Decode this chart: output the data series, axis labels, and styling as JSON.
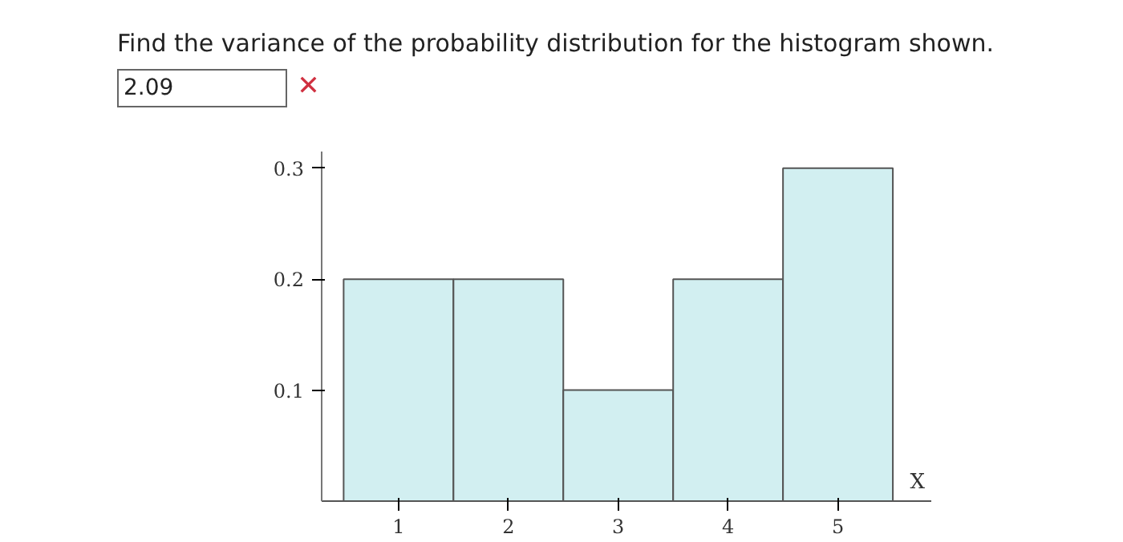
{
  "chart_data": {
    "type": "histogram",
    "title": "Find the variance of the probability distribution for the histogram shown.",
    "annotations": [
      "2.09",
      "✕"
    ],
    "bins": [
      0.5,
      1.5,
      2.5,
      3.5,
      4.5,
      5.5
    ],
    "values": [
      0.2,
      0.2,
      0.1,
      0.2,
      0.3
    ],
    "color": "#d2eff1",
    "xlabel": "X",
    "xlim": [
      0.3,
      5.85
    ],
    "ylim": [
      0,
      0.315
    ],
    "xticks": [
      1,
      2,
      3,
      4,
      5
    ],
    "yticks": [
      0.1,
      0.2,
      0.3
    ],
    "grid": false
  }
}
